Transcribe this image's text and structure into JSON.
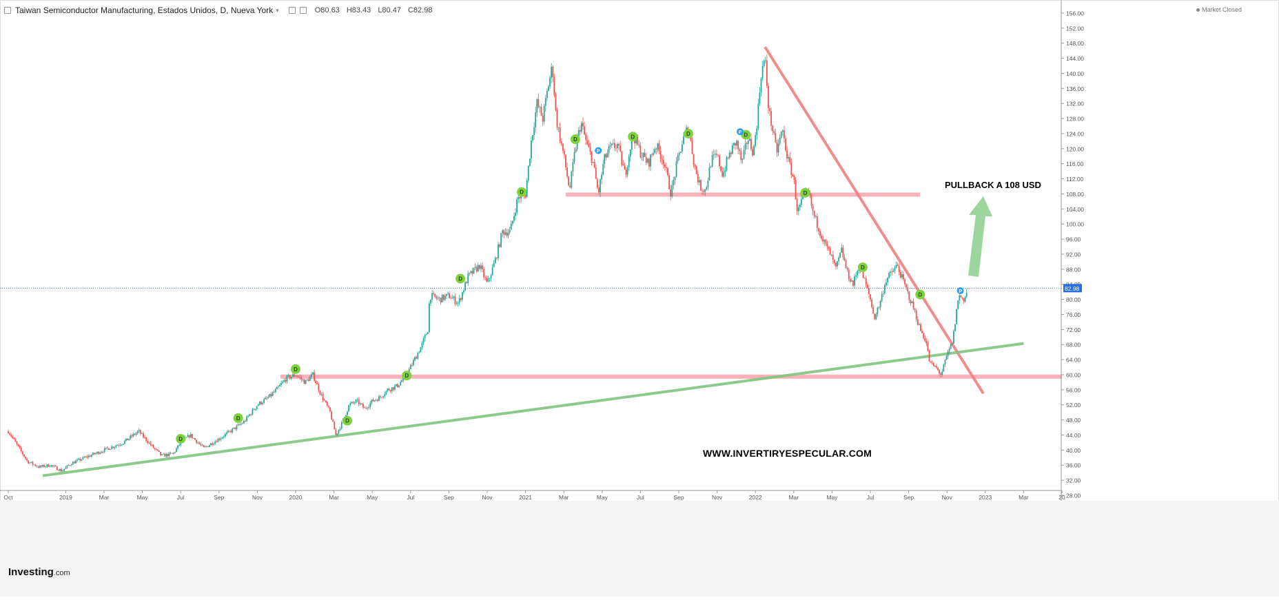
{
  "header": {
    "title": "Taiwan Semiconductor Manufacturing, Estados Unidos, D, Nueva York",
    "dropdown": "▾",
    "ohlc": {
      "o": "O80.63",
      "h": "H83.43",
      "l": "L80.47",
      "c": "C82.98"
    }
  },
  "status": "Market Closed",
  "brand": {
    "name": "Investing",
    "suffix": ".com"
  },
  "annotations": {
    "pullback": "PULLBACK A 108 USD",
    "website": "WWW.INVERTIRYESPECULAR.COM"
  },
  "colors": {
    "up": "#26a69a",
    "down": "#ef5350",
    "support": "#f4a5ab",
    "trend_red": "#f08080",
    "trend_green": "#7fc47f",
    "arrow": "#8ccf8c",
    "price_tag": "#2a6fe0",
    "dividend": "#7ed13f",
    "split_badge": "#2a9df4"
  },
  "chart_data": {
    "type": "candlestick",
    "title": "Taiwan Semiconductor Manufacturing, Estados Unidos, D, Nueva York",
    "ylim": [
      28,
      158
    ],
    "y_ticks": [
      "28.00",
      "32.00",
      "36.00",
      "40.00",
      "44.00",
      "48.00",
      "52.00",
      "56.00",
      "60.00",
      "64.00",
      "68.00",
      "72.00",
      "76.00",
      "80.00",
      "84.00",
      "88.00",
      "92.00",
      "96.00",
      "100.00",
      "104.00",
      "108.00",
      "112.00",
      "116.00",
      "120.00",
      "124.00",
      "128.00",
      "132.00",
      "136.00",
      "140.00",
      "144.00",
      "148.00",
      "152.00",
      "156.00"
    ],
    "x_ticks": [
      {
        "label": "Oct",
        "t": 0
      },
      {
        "label": "2019",
        "t": 3
      },
      {
        "label": "Mar",
        "t": 5
      },
      {
        "label": "May",
        "t": 7
      },
      {
        "label": "Jul",
        "t": 9
      },
      {
        "label": "Sep",
        "t": 11
      },
      {
        "label": "Nov",
        "t": 13
      },
      {
        "label": "2020",
        "t": 15
      },
      {
        "label": "Mar",
        "t": 17
      },
      {
        "label": "May",
        "t": 19
      },
      {
        "label": "Jul",
        "t": 21
      },
      {
        "label": "Sep",
        "t": 23
      },
      {
        "label": "Nov",
        "t": 25
      },
      {
        "label": "2021",
        "t": 27
      },
      {
        "label": "Mar",
        "t": 29
      },
      {
        "label": "May",
        "t": 31
      },
      {
        "label": "Jul",
        "t": 33
      },
      {
        "label": "Sep",
        "t": 35
      },
      {
        "label": "Nov",
        "t": 37
      },
      {
        "label": "2022",
        "t": 39
      },
      {
        "label": "Mar",
        "t": 41
      },
      {
        "label": "May",
        "t": 43
      },
      {
        "label": "Jul",
        "t": 45
      },
      {
        "label": "Sep",
        "t": 47
      },
      {
        "label": "Nov",
        "t": 49
      },
      {
        "label": "2023",
        "t": 51
      },
      {
        "label": "Mar",
        "t": 53
      },
      {
        "label": "20",
        "t": 55
      }
    ],
    "price_path": [
      [
        0,
        45
      ],
      [
        0.5,
        41
      ],
      [
        1,
        37
      ],
      [
        1.6,
        35.5
      ],
      [
        2.2,
        36
      ],
      [
        2.8,
        34.5
      ],
      [
        3.3,
        36.5
      ],
      [
        4,
        38
      ],
      [
        5,
        40
      ],
      [
        6,
        42
      ],
      [
        6.8,
        45
      ],
      [
        7.5,
        41
      ],
      [
        8,
        38.5
      ],
      [
        8.6,
        39
      ],
      [
        9,
        42
      ],
      [
        9.5,
        44
      ],
      [
        10.2,
        40.5
      ],
      [
        11,
        43
      ],
      [
        11.6,
        45
      ],
      [
        12.3,
        47.5
      ],
      [
        13,
        52
      ],
      [
        13.6,
        54
      ],
      [
        14,
        56
      ],
      [
        14.5,
        59
      ],
      [
        15,
        60
      ],
      [
        15.5,
        58
      ],
      [
        15.9,
        60
      ],
      [
        16.3,
        55
      ],
      [
        16.8,
        50
      ],
      [
        17.1,
        44
      ],
      [
        17.4,
        47
      ],
      [
        17.8,
        52
      ],
      [
        18.2,
        53
      ],
      [
        18.6,
        51
      ],
      [
        19,
        53
      ],
      [
        19.4,
        54
      ],
      [
        19.8,
        56
      ],
      [
        20.3,
        57
      ],
      [
        20.8,
        60
      ],
      [
        21.2,
        64
      ],
      [
        21.6,
        68
      ],
      [
        21.9,
        72
      ],
      [
        22.0,
        81
      ],
      [
        22.5,
        80
      ],
      [
        23,
        81
      ],
      [
        23.5,
        79
      ],
      [
        24,
        86
      ],
      [
        24.6,
        89
      ],
      [
        25,
        84
      ],
      [
        25.4,
        90
      ],
      [
        25.8,
        98
      ],
      [
        26.2,
        98
      ],
      [
        26.6,
        107
      ],
      [
        27,
        108
      ],
      [
        27.3,
        122
      ],
      [
        27.6,
        132
      ],
      [
        27.9,
        128
      ],
      [
        28.2,
        137
      ],
      [
        28.4,
        142
      ],
      [
        28.6,
        128
      ],
      [
        29,
        118
      ],
      [
        29.3,
        109
      ],
      [
        29.6,
        120
      ],
      [
        29.9,
        127
      ],
      [
        30.2,
        121
      ],
      [
        30.5,
        117
      ],
      [
        30.8,
        108
      ],
      [
        31.1,
        117
      ],
      [
        31.4,
        120
      ],
      [
        31.8,
        121
      ],
      [
        32.2,
        113
      ],
      [
        32.6,
        124
      ],
      [
        33,
        119
      ],
      [
        33.4,
        116
      ],
      [
        33.8,
        121
      ],
      [
        34.2,
        117
      ],
      [
        34.6,
        108
      ],
      [
        34.9,
        116
      ],
      [
        35.2,
        122
      ],
      [
        35.5,
        126
      ],
      [
        35.8,
        116
      ],
      [
        36.1,
        110
      ],
      [
        36.4,
        109
      ],
      [
        36.7,
        117
      ],
      [
        37,
        118
      ],
      [
        37.3,
        113
      ],
      [
        37.6,
        118
      ],
      [
        38,
        122
      ],
      [
        38.3,
        116
      ],
      [
        38.6,
        123
      ],
      [
        38.9,
        119
      ],
      [
        39.1,
        128
      ],
      [
        39.3,
        140
      ],
      [
        39.5,
        144
      ],
      [
        39.7,
        130
      ],
      [
        39.9,
        125
      ],
      [
        40.1,
        119
      ],
      [
        40.4,
        125
      ],
      [
        40.7,
        117
      ],
      [
        41,
        112
      ],
      [
        41.2,
        103
      ],
      [
        41.5,
        107
      ],
      [
        41.8,
        108
      ],
      [
        42,
        103
      ],
      [
        42.3,
        99
      ],
      [
        42.6,
        95
      ],
      [
        42.9,
        92
      ],
      [
        43.2,
        88
      ],
      [
        43.5,
        93
      ],
      [
        43.8,
        87
      ],
      [
        44.1,
        84
      ],
      [
        44.4,
        89
      ],
      [
        44.7,
        85
      ],
      [
        45,
        80
      ],
      [
        45.2,
        75
      ],
      [
        45.5,
        79
      ],
      [
        45.8,
        85
      ],
      [
        46.1,
        87
      ],
      [
        46.4,
        89
      ],
      [
        46.7,
        85
      ],
      [
        47,
        81
      ],
      [
        47.3,
        77
      ],
      [
        47.6,
        72
      ],
      [
        47.9,
        69
      ],
      [
        48.1,
        63
      ],
      [
        48.4,
        62
      ],
      [
        48.7,
        60
      ],
      [
        49,
        65
      ],
      [
        49.3,
        69
      ],
      [
        49.6,
        81
      ],
      [
        49.9,
        80
      ],
      [
        50.1,
        82.98
      ]
    ],
    "reference_lines": [
      {
        "name": "support-108",
        "from_t": 29.1,
        "to_t": 47.6,
        "y": 107.8,
        "color": "#f4a5ab"
      },
      {
        "name": "support-60",
        "from_t": 14.2,
        "to_t": 55.0,
        "y": 59.5,
        "color": "#f4a5ab"
      },
      {
        "name": "resistance-trend",
        "from": [
          39.5,
          147
        ],
        "to": [
          50.9,
          55
        ],
        "color": "#f08080"
      },
      {
        "name": "support-trend",
        "from": [
          1.8,
          33.2
        ],
        "to": [
          53.0,
          68.3
        ],
        "color": "#7fc47f"
      }
    ],
    "last_price": {
      "value": 82.98,
      "label": "82.98"
    },
    "event_markers": [
      {
        "t": 9.0,
        "y": 43,
        "label": "D"
      },
      {
        "t": 12.0,
        "y": 48.5,
        "label": "D"
      },
      {
        "t": 15.0,
        "y": 61.5,
        "label": "D"
      },
      {
        "t": 17.7,
        "y": 47.8,
        "label": "D"
      },
      {
        "t": 20.8,
        "y": 59.8,
        "label": "D"
      },
      {
        "t": 23.6,
        "y": 85.5,
        "label": "D"
      },
      {
        "t": 26.8,
        "y": 108.5,
        "label": "D"
      },
      {
        "t": 29.6,
        "y": 122.5,
        "label": "D"
      },
      {
        "t": 32.6,
        "y": 123.2,
        "label": "D"
      },
      {
        "t": 35.5,
        "y": 124,
        "label": "D"
      },
      {
        "t": 38.5,
        "y": 123.7,
        "label": "D"
      },
      {
        "t": 41.6,
        "y": 108.3,
        "label": "D"
      },
      {
        "t": 44.6,
        "y": 88.5,
        "label": "D"
      },
      {
        "t": 47.6,
        "y": 81.3,
        "label": "D"
      },
      {
        "t": 30.8,
        "y": 119.5,
        "label": "P"
      },
      {
        "t": 38.2,
        "y": 124.5,
        "label": "P"
      },
      {
        "t": 49.7,
        "y": 82.3,
        "label": "P"
      }
    ]
  }
}
